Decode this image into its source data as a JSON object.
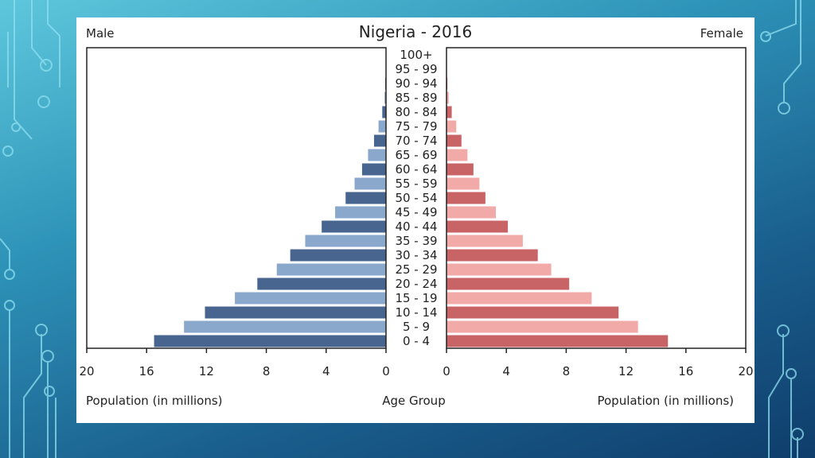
{
  "colors": {
    "male_dark": "#47658f",
    "male_light": "#8aa7cc",
    "female_dark": "#c96466",
    "female_light": "#f2aaa8"
  },
  "chart_data": {
    "type": "bar",
    "subtype": "population-pyramid",
    "title": "Nigeria - 2016",
    "left_label": "Male",
    "right_label": "Female",
    "center_xlabel": "Age Group",
    "left_xlabel": "Population (in millions)",
    "right_xlabel": "Population (in millions)",
    "xlim": [
      0,
      20
    ],
    "xticks_left": [
      "20",
      "16",
      "12",
      "8",
      "4",
      "0"
    ],
    "xticks_right": [
      "0",
      "4",
      "8",
      "12",
      "16",
      "20"
    ],
    "categories": [
      "0 - 4",
      "5 - 9",
      "10 - 14",
      "15 - 19",
      "20 - 24",
      "25 - 29",
      "30 - 34",
      "35 - 39",
      "40 - 44",
      "45 - 49",
      "50 - 54",
      "55 - 59",
      "60 - 64",
      "65 - 69",
      "70 - 74",
      "75 - 79",
      "80 - 84",
      "85 - 89",
      "90 - 94",
      "95 - 99",
      "100+"
    ],
    "series": [
      {
        "name": "Male",
        "side": "left",
        "values": [
          15.5,
          13.5,
          12.1,
          10.1,
          8.6,
          7.3,
          6.4,
          5.4,
          4.3,
          3.4,
          2.7,
          2.1,
          1.6,
          1.2,
          0.8,
          0.5,
          0.25,
          0.1,
          0.05,
          0.02,
          0.01
        ]
      },
      {
        "name": "Female",
        "side": "right",
        "values": [
          14.8,
          12.8,
          11.5,
          9.7,
          8.2,
          7.0,
          6.1,
          5.1,
          4.1,
          3.3,
          2.6,
          2.2,
          1.8,
          1.4,
          1.0,
          0.65,
          0.35,
          0.15,
          0.06,
          0.02,
          0.01
        ]
      }
    ]
  }
}
